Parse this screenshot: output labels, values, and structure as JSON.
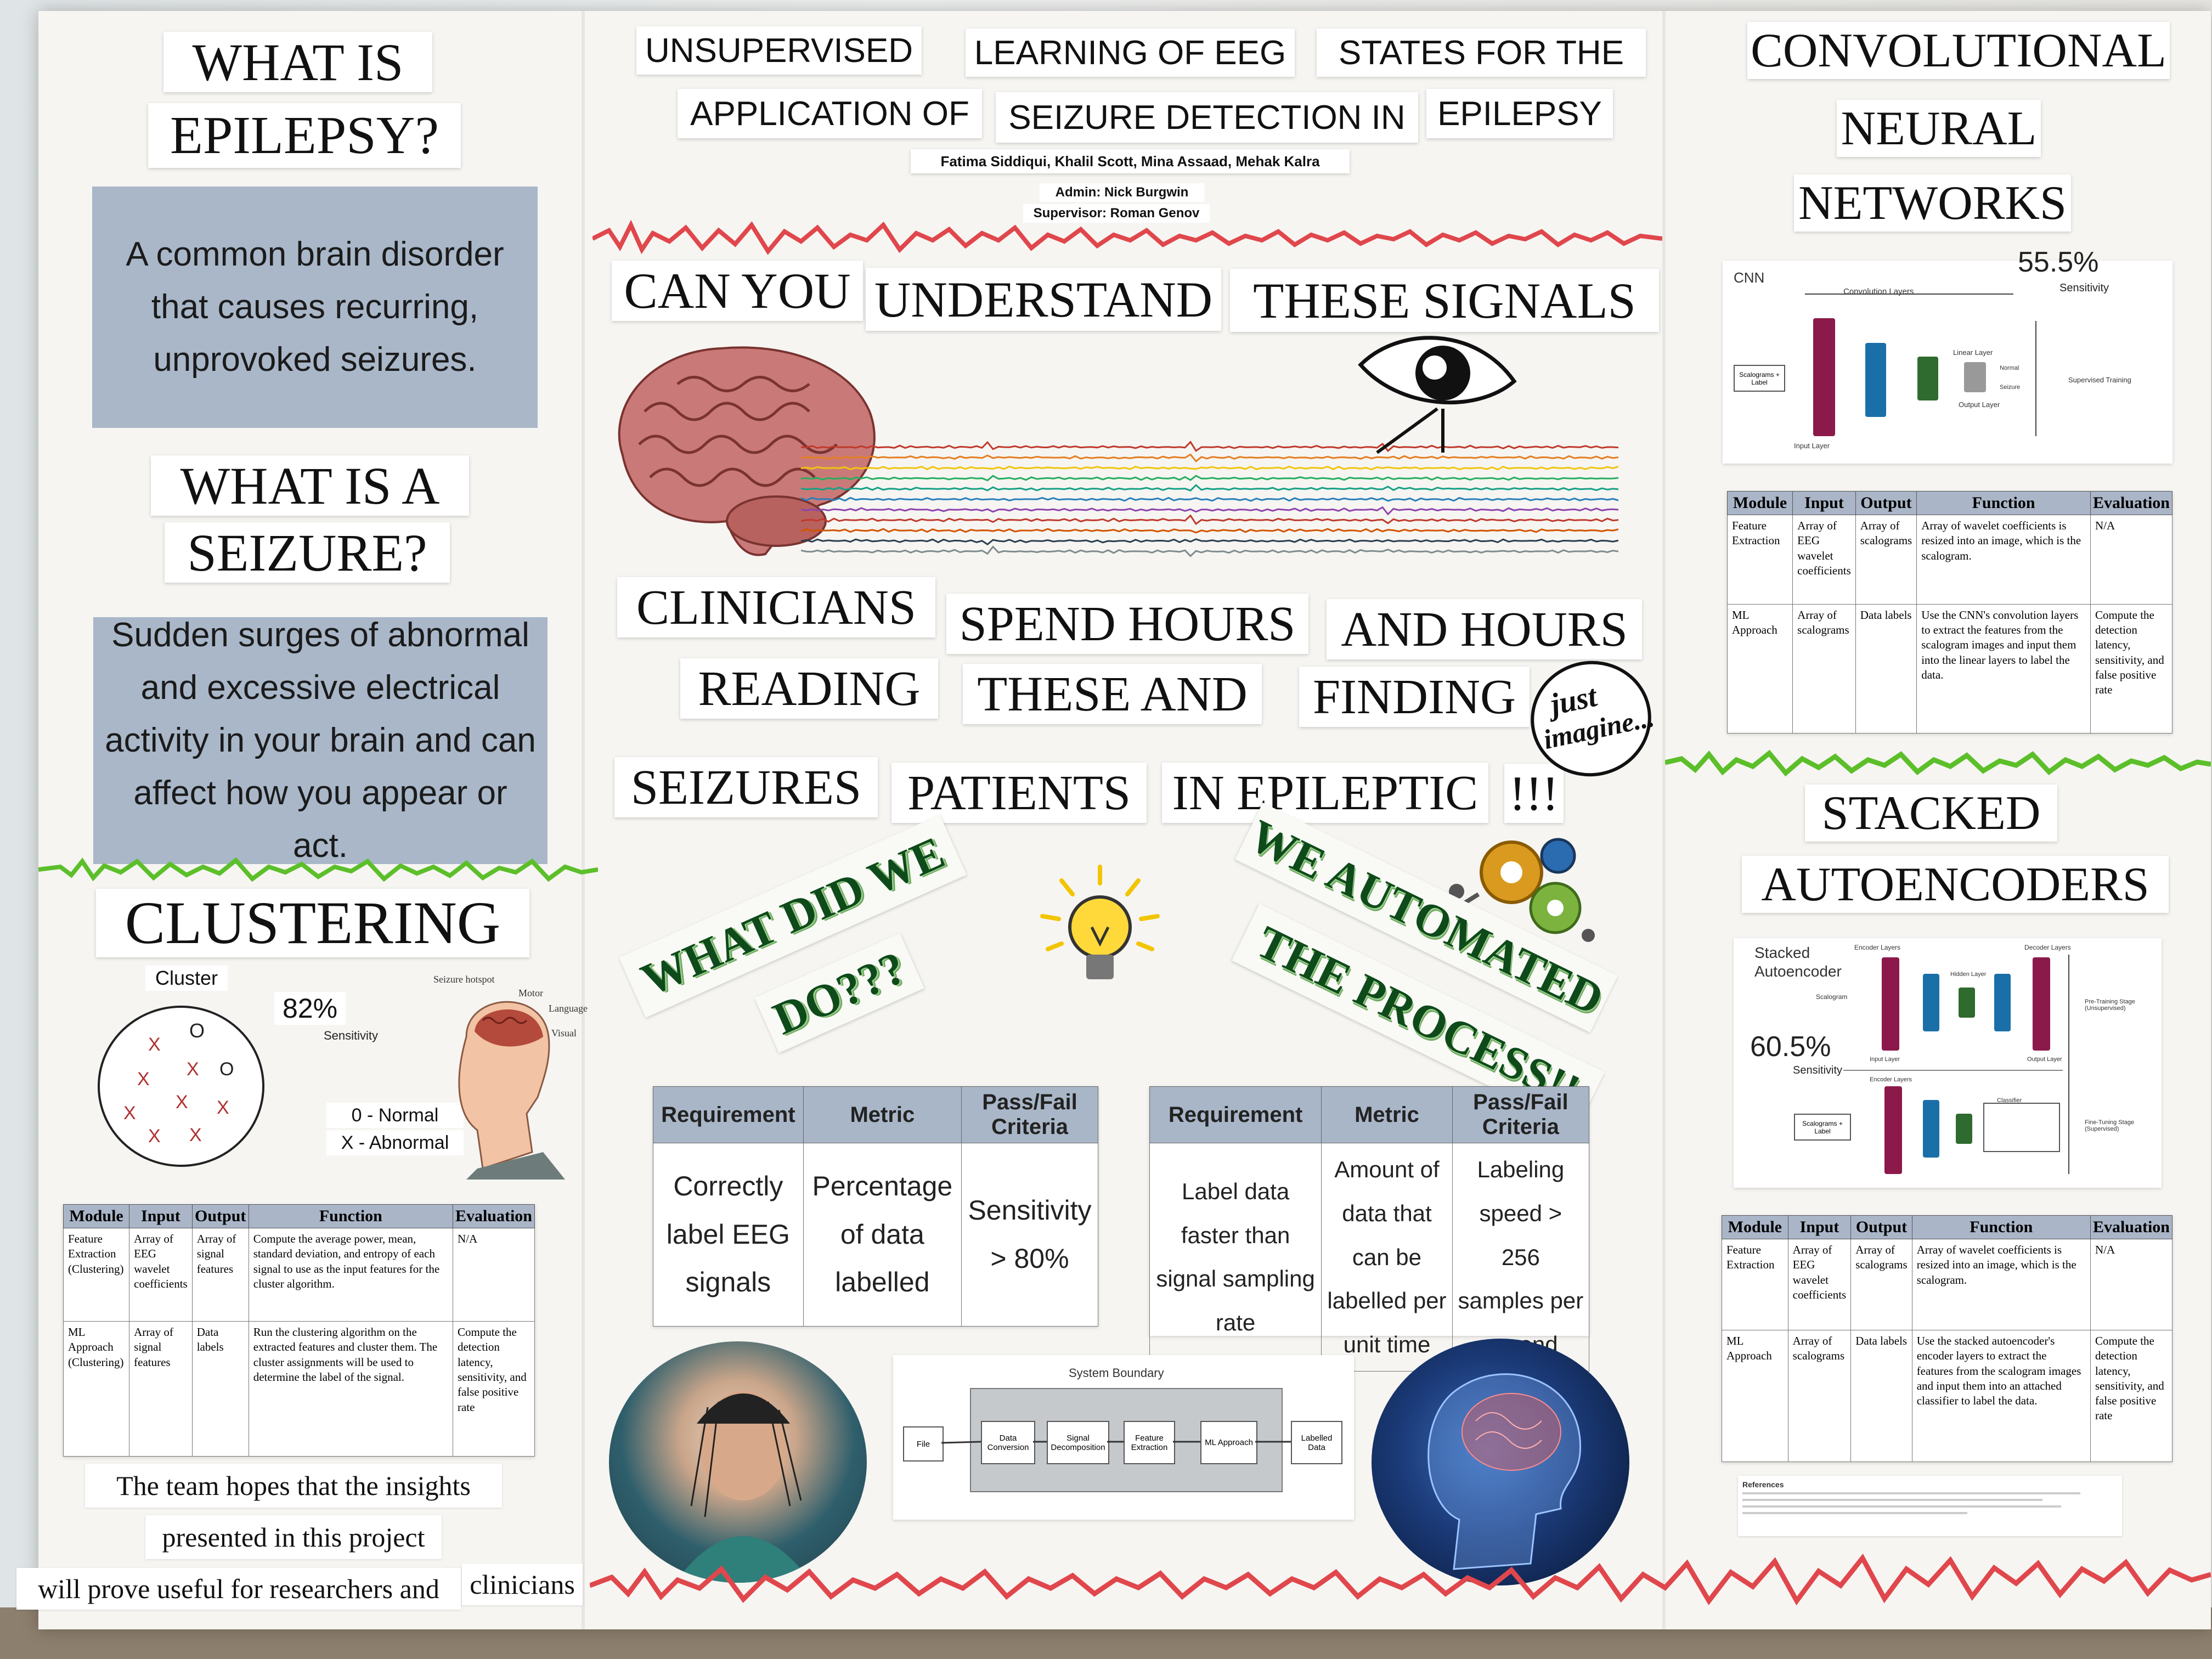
{
  "title": {
    "line1": [
      "UNSUPERVISED",
      "LEARNING OF EEG",
      "STATES FOR THE"
    ],
    "line2": [
      "APPLICATION OF",
      "SEIZURE DETECTION IN",
      "EPILEPSY"
    ],
    "authors": "Fatima Siddiqui, Khalil Scott, Mina Assaad, Mehak Kalra",
    "admin": "Admin: Nick Burgwin",
    "supervisor": "Supervisor: Roman Genov"
  },
  "left": {
    "h_epilepsy_1": "WHAT IS",
    "h_epilepsy_2": "EPILEPSY?",
    "epilepsy_def": "A common brain disorder that causes recurring, unprovoked seizures.",
    "h_seizure_1": "WHAT IS A",
    "h_seizure_2": "SEIZURE?",
    "seizure_def": "Sudden surges of abnormal and excessive electrical activity in your brain and can affect how you appear or act.",
    "h_clustering": "CLUSTERING",
    "cluster_label": "Cluster",
    "cluster_o": "O",
    "cluster_x": "X",
    "sensitivity_value": "82%",
    "sensitivity_label": "Sensitivity",
    "legend_normal": "0 - Normal",
    "legend_abnormal": "X - Abnormal",
    "brain_labels": [
      "Seizure hotspot",
      "Motor",
      "Language",
      "Visual"
    ],
    "table": {
      "headers": [
        "Module",
        "Input",
        "Output",
        "Function",
        "Evaluation"
      ],
      "rows": [
        [
          "Feature Extraction (Clustering)",
          "Array of EEG wavelet coefficients",
          "Array of signal features",
          "Compute the average power, mean, standard deviation, and entropy of each signal to use as the input features for the cluster algorithm.",
          "N/A"
        ],
        [
          "ML Approach (Clustering)",
          "Array of signal features",
          "Data labels",
          "Run the clustering algorithm on the extracted features and cluster them. The cluster assignments will be used to determine the label of the signal.",
          "Compute the detection latency, sensitivity, and false positive rate"
        ]
      ]
    },
    "closing_1": "The team hopes that the insights",
    "closing_2": "presented in this project",
    "closing_3a": "will prove useful for researchers and",
    "closing_3b": "clinicians"
  },
  "center": {
    "q_words": [
      "CAN YOU",
      "UNDERSTAND",
      "THESE SIGNALS"
    ],
    "c_row1": [
      "CLINICIANS",
      "SPEND HOURS",
      "AND HOURS"
    ],
    "c_row2": [
      "READING",
      "THESE AND",
      "FINDING"
    ],
    "c_row3": [
      "SEIZURES",
      "PATIENTS",
      "IN EPILEPTIC",
      "!!!"
    ],
    "just_imagine_1": "just",
    "just_imagine_2": "imagine...",
    "what_did_1": "WHAT DID WE",
    "what_did_2": "DO???",
    "automated_1": "WE AUTOMATED",
    "automated_2": "THE PROCESS!!",
    "req1": {
      "headers": [
        "Requirement",
        "Metric",
        "Pass/Fail Criteria"
      ],
      "row": [
        "Correctly label EEG signals",
        "Percentage of data labelled",
        "Sensitivity > 80%"
      ]
    },
    "req2": {
      "headers": [
        "Requirement",
        "Metric",
        "Pass/Fail Criteria"
      ],
      "row": [
        "Label data faster than signal sampling rate",
        "Amount of data that can be labelled per unit time",
        "Labeling speed > 256 samples per second"
      ]
    },
    "system": {
      "title": "System Boundary",
      "blocks": [
        "File",
        "Data Conversion",
        "Signal Decomposition",
        "Feature Extraction",
        "ML Approach",
        "Labelled Data"
      ]
    },
    "eeg_colors": [
      "#c0392b",
      "#e67e22",
      "#f1c40f",
      "#27ae60",
      "#16a085",
      "#2980b9",
      "#8e44ad",
      "#c0392b",
      "#d35400",
      "#2c3e50",
      "#7f8c8d"
    ]
  },
  "right": {
    "h_cnn": [
      "CONVOLUTIONAL",
      "NEURAL",
      "NETWORKS"
    ],
    "cnn_label": "CNN",
    "cnn_sens_value": "55.5%",
    "cnn_sens_label": "Sensitivity",
    "cnn_diag": {
      "conv": "Convolution Layers",
      "input": "Scalograms + Label",
      "input_layer": "Input Layer",
      "linear": "Linear Layer",
      "output": "Output Layer",
      "normal": "Normal",
      "seizure": "Seizure",
      "supervised": "Supervised Training"
    },
    "cnn_table": {
      "headers": [
        "Module",
        "Input",
        "Output",
        "Function",
        "Evaluation"
      ],
      "rows": [
        [
          "Feature Extraction",
          "Array of EEG wavelet coefficients",
          "Array of scalograms",
          "Array of wavelet coefficients is resized into an image, which is the scalogram.",
          "N/A"
        ],
        [
          "ML Approach",
          "Array of scalograms",
          "Data labels",
          "Use the CNN's convolution layers to extract the features from the scalogram images and input them into the linear layers to label the data.",
          "Compute the detection latency, sensitivity, and false positive rate"
        ]
      ]
    },
    "h_sae": [
      "STACKED",
      "AUTOENCODERS"
    ],
    "sae_label": "Stacked Autoencoder",
    "sae_sens_value": "60.5%",
    "sae_sens_label": "Sensitivity",
    "sae_diag": {
      "unsup": "Pre-Training Stage (Unsupervised)",
      "sup": "Fine-Tuning Stage (Supervised)",
      "encoder": "Encoder Layers",
      "decoder": "Decoder Layers",
      "hidden": "Hidden Layer",
      "input_layer": "Input Layer",
      "output_layer": "Output Layer",
      "classifier": "Classifier",
      "scalogram": "Scalogram",
      "scalograms_label": "Scalograms + Label"
    },
    "sae_table": {
      "headers": [
        "Module",
        "Input",
        "Output",
        "Function",
        "Evaluation"
      ],
      "rows": [
        [
          "Feature Extraction",
          "Array of EEG wavelet coefficients",
          "Array of scalograms",
          "Array of wavelet coefficients is resized into an image, which is the scalogram.",
          "N/A"
        ],
        [
          "ML Approach",
          "Array of scalograms",
          "Data labels",
          "Use the stacked autoencoder's encoder layers to extract the features from the scalogram images and input them into an attached classifier to label the data.",
          "Compute the detection latency, sensitivity, and false positive rate"
        ]
      ]
    },
    "references": "References"
  },
  "colors": {
    "panel_blue": "#a9b7c9",
    "wave_red": "#e0474c",
    "wave_green": "#5cbf2a",
    "title_green": "#0e4a1a"
  }
}
